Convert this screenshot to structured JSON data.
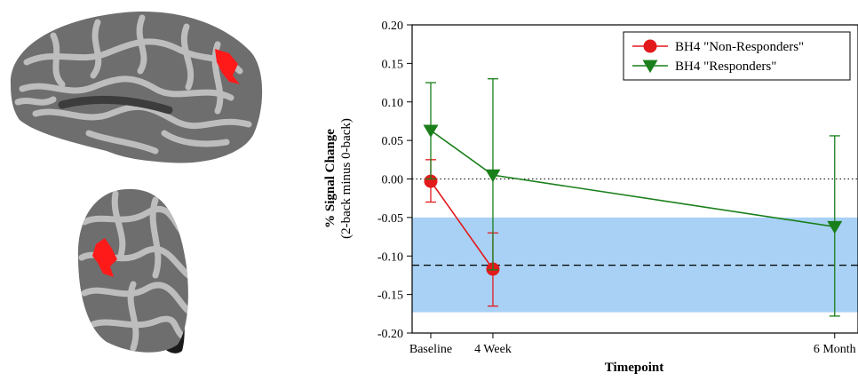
{
  "figure": {
    "panels": [
      "brain-renderings",
      "signal-change-chart"
    ]
  },
  "brain": {
    "surface_color": "#6e6e6e",
    "gyri_color": "#bdbdbd",
    "roi_color": "#ff1a1a"
  },
  "chart_data": {
    "type": "line",
    "xlabel": "Timepoint",
    "ylabel": "% Signal Change",
    "ylabel_sub": "(2-back minus 0-back)",
    "ylim": [
      -0.2,
      0.2
    ],
    "yticks": [
      "0.20",
      "0.15",
      "0.10",
      "0.05",
      "0.00",
      "-0.05",
      "-0.10",
      "-0.15",
      "-0.20"
    ],
    "ytick_values": [
      0.2,
      0.15,
      0.1,
      0.05,
      0.0,
      -0.05,
      -0.1,
      -0.15,
      -0.2
    ],
    "x_categories": [
      "Baseline",
      "4 Week",
      "6 Month"
    ],
    "x_weeks": [
      0,
      4,
      26
    ],
    "xlim": [
      -1.2,
      27.5
    ],
    "series": [
      {
        "name": "BH4 \"Non-Responders\"",
        "color": "#e31a1c",
        "marker": "circle",
        "x": [
          0,
          4
        ],
        "y": [
          -0.003,
          -0.117
        ],
        "err_low": [
          -0.03,
          -0.165
        ],
        "err_high": [
          0.025,
          -0.07
        ]
      },
      {
        "name": "BH4 \"Responders\"",
        "color": "#1a7f1a",
        "marker": "triangle-down",
        "x": [
          0,
          4,
          26
        ],
        "y": [
          0.063,
          0.005,
          -0.062
        ],
        "err_low": [
          0.0,
          -0.118,
          -0.178
        ],
        "err_high": [
          0.125,
          0.13,
          0.056
        ]
      }
    ],
    "reference_band": {
      "low": -0.173,
      "high": -0.05,
      "mean": -0.112,
      "color": "#a8d1f5"
    },
    "zero_line": {
      "y": 0.0,
      "style": "dotted"
    },
    "legend": "top-right",
    "grid": false
  }
}
